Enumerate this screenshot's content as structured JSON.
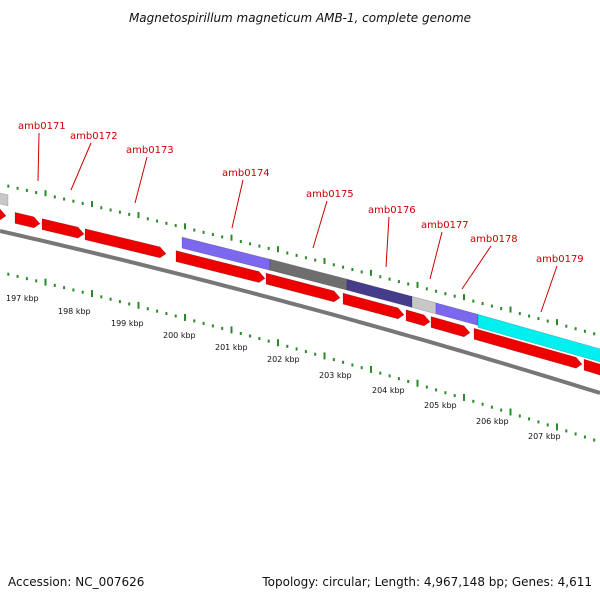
{
  "title": "Magnetospirillum magneticum AMB-1, complete genome",
  "footer": {
    "accession": "Accession: NC_007626",
    "summary": "Topology: circular; Length: 4,967,148 bp; Genes: 4,611"
  },
  "genes": [
    {
      "label": "amb0171"
    },
    {
      "label": "amb0172"
    },
    {
      "label": "amb0173"
    },
    {
      "label": "amb0174"
    },
    {
      "label": "amb0175"
    },
    {
      "label": "amb0176"
    },
    {
      "label": "amb0177"
    },
    {
      "label": "amb0178"
    },
    {
      "label": "amb0179"
    }
  ],
  "kbp_labels": [
    "197 kbp",
    "198 kbp",
    "199 kbp",
    "200 kbp",
    "201 kbp",
    "202 kbp",
    "203 kbp",
    "204 kbp",
    "205 kbp",
    "206 kbp",
    "207 kbp"
  ],
  "colors": {
    "gene_label": "#cc0000",
    "red_feature": "#ee0000",
    "tick_green": "#2a8a2a",
    "backbone": "#777777",
    "purple": "#7b68ee",
    "dark_gray": "#6e6e6e",
    "dark_blue": "#463c8c",
    "light_gray": "#c8c8c8",
    "cyan": "#00f0f0"
  }
}
